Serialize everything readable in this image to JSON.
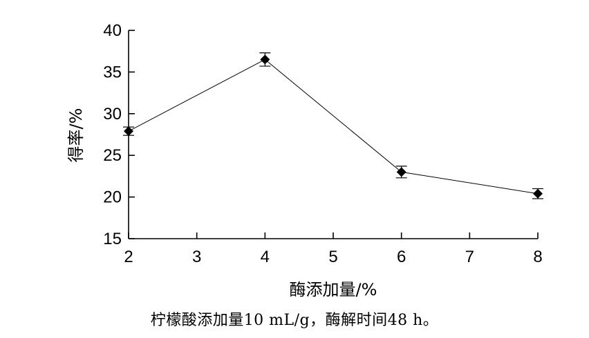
{
  "chart_data": {
    "type": "line",
    "title": "",
    "xlabel": "酶添加量/%",
    "ylabel": "得率/%",
    "x": [
      2,
      4,
      6,
      8
    ],
    "series": [
      {
        "values": [
          27.9,
          36.5,
          23.0,
          20.4
        ],
        "errors": [
          0.5,
          0.8,
          0.7,
          0.6
        ]
      }
    ],
    "xlim": [
      2,
      8
    ],
    "ylim": [
      15,
      40
    ],
    "xticks": [
      2,
      3,
      4,
      5,
      6,
      7,
      8
    ],
    "yticks": [
      15,
      20,
      25,
      30,
      35,
      40
    ],
    "marker": "diamond",
    "line_color": "#000000",
    "grid": false,
    "legend": "none"
  },
  "caption": "柠檬酸添加量10 mL/g，酶解时间48 h。"
}
